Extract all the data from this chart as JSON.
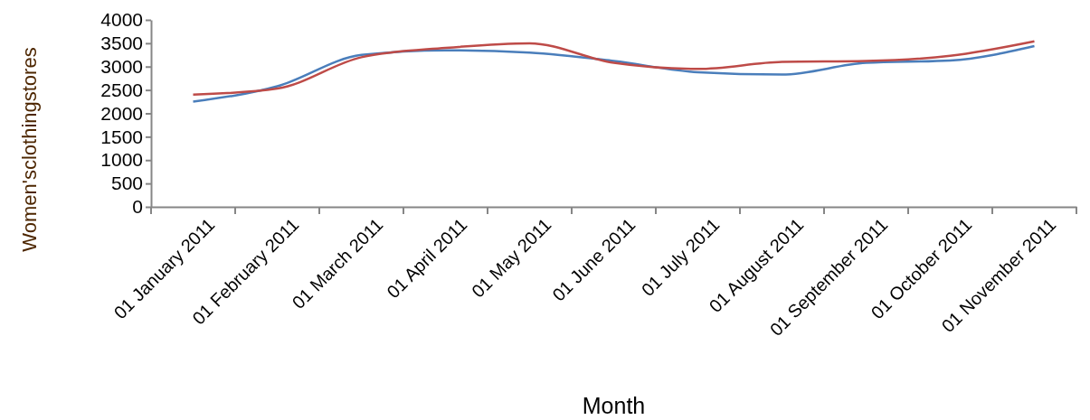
{
  "chart_data": {
    "type": "line",
    "xlabel": "Month",
    "ylabel": "Women'sclothingstores",
    "categories": [
      "01 January 2011",
      "01 February 2011",
      "01 March 2011",
      "01 April 2011",
      "01 May 2011",
      "01 June 2011",
      "01 July 2011",
      "01 August 2011",
      "01 September 2011",
      "01 October 2011",
      "01 November 2011"
    ],
    "series": [
      {
        "color": "#4a7ebb",
        "values": [
          2250,
          2580,
          3250,
          3350,
          3300,
          3120,
          2880,
          2830,
          3080,
          3130,
          3440
        ]
      },
      {
        "color": "#be4b48",
        "values": [
          2400,
          2530,
          3200,
          3400,
          3500,
          3080,
          2950,
          3100,
          3120,
          3230,
          3540
        ]
      }
    ],
    "ylim": [
      0,
      4000
    ],
    "yticks": [
      0,
      500,
      1000,
      1500,
      2000,
      2500,
      3000,
      3500,
      4000
    ],
    "grid": false,
    "marker": "none",
    "line_style": "solid"
  }
}
